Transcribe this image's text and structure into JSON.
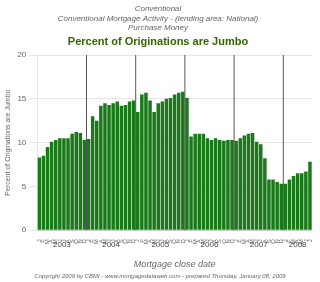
{
  "chart_data": {
    "type": "bar",
    "title": "Percent of Originations are Jumbo",
    "subtitle": [
      "Conventional",
      "Conventional Mortgage Activity - (lending area: National)",
      "Purchase Money"
    ],
    "x_label": "Mortgage close date",
    "y_label": "Percent of Originations are Jumbo",
    "annotations": [
      "Copyright 2009 by CBMI - www.mortgagedataweb.com - prepared Thursday, January 08, 2009"
    ],
    "categories": [
      "J",
      "F",
      "M",
      "A",
      "M",
      "J",
      "J",
      "A",
      "S",
      "O",
      "N",
      "D",
      "J",
      "F",
      "M",
      "A",
      "M",
      "J",
      "J",
      "A",
      "S",
      "O",
      "N",
      "D",
      "J",
      "F",
      "M",
      "A",
      "M",
      "J",
      "J",
      "A",
      "S",
      "O",
      "N",
      "D",
      "J",
      "F",
      "M",
      "A",
      "M",
      "J",
      "J",
      "A",
      "S",
      "O",
      "N",
      "D",
      "J",
      "F",
      "M",
      "A",
      "M",
      "J",
      "J",
      "A",
      "S",
      "O",
      "N",
      "D",
      "J",
      "F",
      "M",
      "A",
      "M",
      "J",
      "J"
    ],
    "groups": [
      {
        "label": "2003",
        "size": 12
      },
      {
        "label": "2004",
        "size": 12
      },
      {
        "label": "2005",
        "size": 12
      },
      {
        "label": "2006",
        "size": 12
      },
      {
        "label": "2007",
        "size": 12
      },
      {
        "label": "2008",
        "size": 7
      }
    ],
    "values": [
      8.3,
      8.5,
      9.5,
      10.1,
      10.3,
      10.5,
      10.5,
      10.5,
      11.0,
      11.2,
      11.1,
      10.3,
      10.4,
      13.0,
      12.5,
      14.2,
      14.5,
      14.3,
      14.5,
      14.7,
      14.2,
      14.3,
      14.7,
      14.8,
      13.5,
      15.5,
      15.7,
      14.8,
      13.5,
      14.5,
      14.7,
      15.0,
      15.1,
      15.5,
      15.7,
      15.8,
      15.1,
      10.7,
      11.0,
      11.0,
      11.0,
      10.5,
      10.3,
      10.5,
      10.3,
      10.2,
      10.3,
      10.3,
      10.2,
      10.5,
      10.8,
      11.0,
      11.1,
      10.1,
      9.8,
      8.2,
      5.8,
      5.8,
      5.5,
      5.3,
      5.3,
      5.8,
      6.2,
      6.5,
      6.5,
      6.7,
      7.8
    ],
    "color": "#1a7a1a",
    "ylim": [
      0,
      20
    ],
    "yticks": [
      0,
      5,
      10,
      15,
      20
    ],
    "grid": true
  }
}
